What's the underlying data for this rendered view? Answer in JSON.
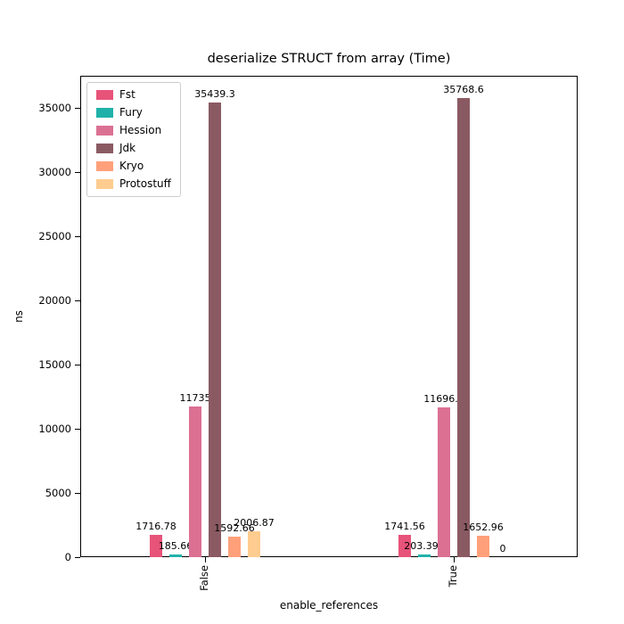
{
  "chart_data": {
    "type": "bar",
    "title": "deserialize STRUCT from array (Time)",
    "xlabel": "enable_references",
    "ylabel": "ns",
    "categories": [
      "False",
      "True"
    ],
    "series": [
      {
        "name": "Fst",
        "color": "#e8537a",
        "values": [
          1716.78,
          1741.56
        ],
        "labels": [
          "1716.78",
          "1741.56"
        ]
      },
      {
        "name": "Fury",
        "color": "#20b2aa",
        "values": [
          185.66,
          203.398
        ],
        "labels": [
          "185.66",
          "203.398"
        ]
      },
      {
        "name": "Hession",
        "color": "#db7093",
        "values": [
          11735,
          11696.1
        ],
        "labels": [
          "11735",
          "11696.1"
        ]
      },
      {
        "name": "Jdk",
        "color": "#8a5a63",
        "values": [
          35439.3,
          35768.6
        ],
        "labels": [
          "35439.3",
          "35768.6"
        ]
      },
      {
        "name": "Kryo",
        "color": "#ffa07a",
        "values": [
          1592.66,
          1652.96
        ],
        "labels": [
          "1592.66",
          "1652.96"
        ]
      },
      {
        "name": "Protostuff",
        "color": "#ffcc8f",
        "values": [
          2006.87,
          0
        ],
        "labels": [
          "2006.87",
          "0"
        ]
      }
    ],
    "ylim": [
      0,
      37500
    ],
    "yticks": [
      0,
      5000,
      10000,
      15000,
      20000,
      25000,
      30000,
      35000
    ],
    "legend_position": "upper left",
    "grid": false
  }
}
